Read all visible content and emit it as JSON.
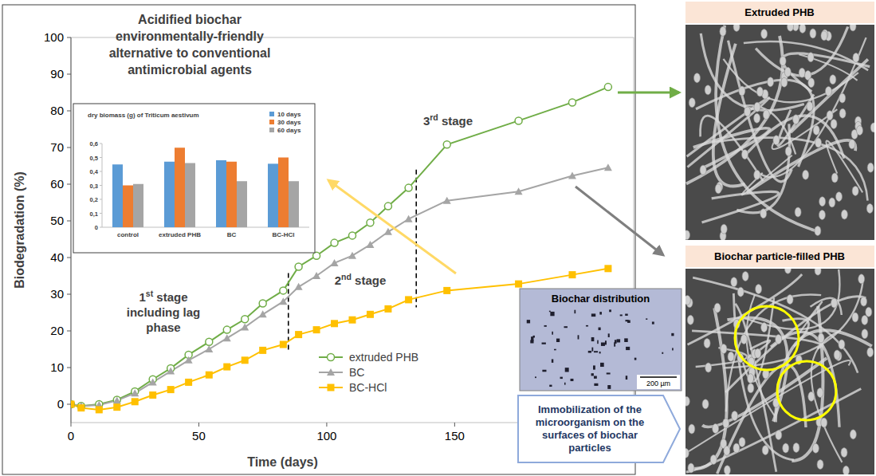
{
  "chart_data": [
    {
      "type": "line",
      "x_label": "Time (days)",
      "y_label": "Biodegradation (%)",
      "x": [
        0,
        4,
        11,
        18,
        25,
        32,
        39,
        46,
        54,
        61,
        68,
        75,
        83,
        89,
        96,
        103,
        110,
        117,
        124,
        132,
        147,
        175,
        196,
        210
      ],
      "xlim": [
        0,
        220
      ],
      "xticks": [
        0,
        50,
        100,
        150
      ],
      "ylim": [
        -5,
        100
      ],
      "yticks": [
        0,
        10,
        20,
        30,
        40,
        50,
        60,
        70,
        80,
        90,
        100
      ],
      "grid": false,
      "legend": "lower center",
      "series": [
        {
          "name": "extruded PHB",
          "color": "#70ad47",
          "marker": "open-circle",
          "values": [
            0,
            -0.5,
            0,
            1.2,
            3.5,
            6.8,
            9.8,
            13.5,
            17,
            20.3,
            23.2,
            27.5,
            31,
            37.5,
            40.5,
            44,
            46,
            49.5,
            54,
            59,
            70.8,
            77.3,
            82.3,
            86.5
          ]
        },
        {
          "name": "BC",
          "color": "#a5a5a5",
          "marker": "triangle",
          "values": [
            0,
            -0.5,
            -0.2,
            1,
            3,
            6,
            9,
            12,
            15,
            18,
            21,
            24.5,
            28,
            32,
            35,
            38.5,
            40.5,
            43.5,
            47,
            50.5,
            55.5,
            58,
            62.3,
            64.5
          ]
        },
        {
          "name": "BC-HCl",
          "color": "#ffc000",
          "marker": "square",
          "values": [
            0,
            -1,
            -1.5,
            -0.8,
            0.7,
            2.5,
            4,
            6,
            8,
            10.2,
            12,
            14.7,
            16.3,
            19,
            20.3,
            22,
            23,
            24.5,
            26,
            28.5,
            31,
            32.8,
            35.3,
            37
          ]
        }
      ],
      "stage_boundaries": [
        85,
        135
      ],
      "annotations": [
        "Acidified biochar environmentally-friendly alternative to conventional antimicrobial agents",
        "1st stage including lag phase",
        "2nd stage",
        "3rd stage"
      ]
    },
    {
      "type": "bar",
      "title": "dry biomass (g) of Triticum aestivum",
      "categories": [
        "control",
        "extruded PHB",
        "BC",
        "BC-HCl"
      ],
      "ylim": [
        0,
        0.6
      ],
      "yticks": [
        0,
        {
          "value": 0.1,
          "label": "0,1"
        },
        {
          "value": 0.2,
          "label": "0,2"
        },
        {
          "value": 0.3,
          "label": "0,3"
        },
        {
          "value": 0.4,
          "label": "0,4"
        },
        {
          "value": 0.5,
          "label": "0,5"
        },
        {
          "value": 0.6,
          "label": "0,6"
        }
      ],
      "grid": false,
      "legend": "upper right",
      "series": [
        {
          "name": "10 days",
          "color": "#5b9bd5",
          "values": [
            0.45,
            0.47,
            0.48,
            0.455
          ]
        },
        {
          "name": "30 days",
          "color": "#ed7d31",
          "values": [
            0.3,
            0.57,
            0.47,
            0.5
          ]
        },
        {
          "name": "60 days",
          "color": "#a5a5a5",
          "values": [
            0.31,
            0.46,
            0.33,
            0.33
          ]
        }
      ]
    }
  ],
  "panels": {
    "sem_top": "Extruded PHB",
    "sem_bottom": "Biochar particle-filled PHB",
    "micrograph": "Biochar distribution",
    "scale_bar": "200 µm",
    "callout": "Immobilization of the microorganism on the surfaces of biochar particles"
  }
}
